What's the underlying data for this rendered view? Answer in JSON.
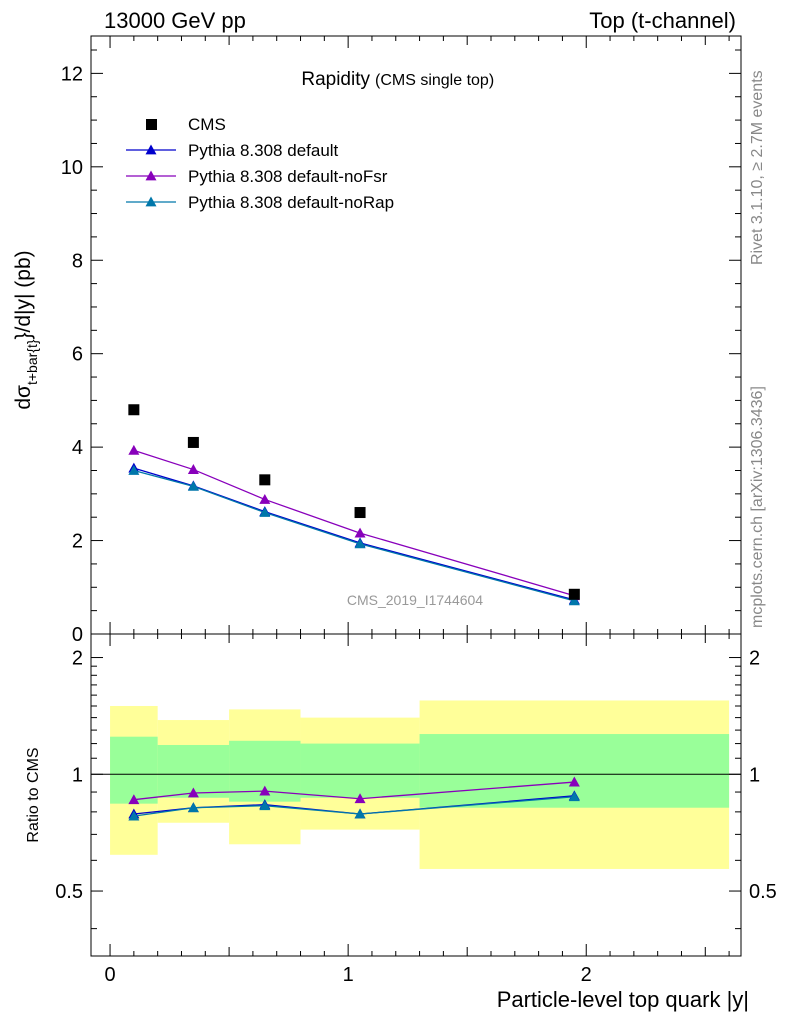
{
  "header": {
    "left": "13000 GeV pp",
    "right": "Top (t-channel)"
  },
  "side_labels": {
    "rivet": "Rivet 3.1.10, ≥ 2.7M events",
    "mcplots": "mcplots.cern.ch [arXiv:1306.3436]"
  },
  "chart_data": [
    {
      "type": "scatter",
      "title": "Rapidity",
      "subtitle": "(CMS single top)",
      "watermark": "CMS_2019_I1744604",
      "xlabel": "Particle-level top quark |y|",
      "ylabel_main": "dσ",
      "ylabel_sub": "t+bar{t}",
      "ylabel_rest": "}/d|y|  (pb)",
      "xlim": [
        -0.08,
        2.65
      ],
      "ylim": [
        0,
        12.8
      ],
      "yticks": [
        0,
        2,
        4,
        6,
        8,
        10,
        12
      ],
      "xticks": [
        0,
        1,
        2
      ],
      "legend_position": "top-left",
      "colors": {
        "data": "#000000",
        "default": "#0000cc",
        "noFsr": "#8800bb",
        "noRap": "#0077aa"
      },
      "data": {
        "name": "CMS",
        "x": [
          0.1,
          0.35,
          0.65,
          1.05,
          1.95
        ],
        "y": [
          4.8,
          4.1,
          3.3,
          2.6,
          0.85
        ]
      },
      "series": [
        {
          "name": "Pythia 8.308 default",
          "key": "default",
          "x": [
            0.1,
            0.35,
            0.65,
            1.05,
            1.95
          ],
          "values": [
            3.55,
            3.17,
            2.62,
            1.95,
            0.73
          ]
        },
        {
          "name": "Pythia 8.308 default-noFsr",
          "key": "noFsr",
          "x": [
            0.1,
            0.35,
            0.65,
            1.05,
            1.95
          ],
          "values": [
            3.93,
            3.52,
            2.88,
            2.16,
            0.82
          ]
        },
        {
          "name": "Pythia 8.308 default-noRap",
          "key": "noRap",
          "x": [
            0.1,
            0.35,
            0.65,
            1.05,
            1.95
          ],
          "values": [
            3.5,
            3.16,
            2.6,
            1.93,
            0.71
          ]
        }
      ]
    },
    {
      "type": "line",
      "title": "",
      "ylabel": "Ratio to CMS",
      "xlim": [
        -0.08,
        2.65
      ],
      "ylim": [
        0.34,
        2.3
      ],
      "yticks": [
        0.5,
        1,
        2
      ],
      "reference_line": 1,
      "colors": {
        "yellow_band": "#ffff99",
        "green_band": "#99ff99"
      },
      "bins": [
        {
          "x_low": 0.0,
          "x_high": 0.2,
          "yellow": [
            0.62,
            1.5
          ],
          "green": [
            0.84,
            1.25
          ]
        },
        {
          "x_low": 0.2,
          "x_high": 0.5,
          "yellow": [
            0.75,
            1.38
          ],
          "green": [
            0.87,
            1.19
          ]
        },
        {
          "x_low": 0.5,
          "x_high": 0.8,
          "yellow": [
            0.66,
            1.47
          ],
          "green": [
            0.85,
            1.22
          ]
        },
        {
          "x_low": 0.8,
          "x_high": 1.3,
          "yellow": [
            0.72,
            1.4
          ],
          "green": [
            0.87,
            1.2
          ]
        },
        {
          "x_low": 1.3,
          "x_high": 2.6,
          "yellow": [
            0.57,
            1.55
          ],
          "green": [
            0.82,
            1.27
          ]
        }
      ],
      "series": [
        {
          "name": "Pythia 8.308 default",
          "key": "default",
          "x": [
            0.1,
            0.35,
            0.65,
            1.05,
            1.95
          ],
          "values": [
            0.79,
            0.82,
            0.835,
            0.79,
            0.88
          ]
        },
        {
          "name": "Pythia 8.308 default-noFsr",
          "key": "noFsr",
          "x": [
            0.1,
            0.35,
            0.65,
            1.05,
            1.95
          ],
          "values": [
            0.86,
            0.895,
            0.905,
            0.865,
            0.955
          ]
        },
        {
          "name": "Pythia 8.308 default-noRap",
          "key": "noRap",
          "x": [
            0.1,
            0.35,
            0.65,
            1.05,
            1.95
          ],
          "values": [
            0.78,
            0.82,
            0.83,
            0.79,
            0.875
          ]
        }
      ]
    }
  ]
}
